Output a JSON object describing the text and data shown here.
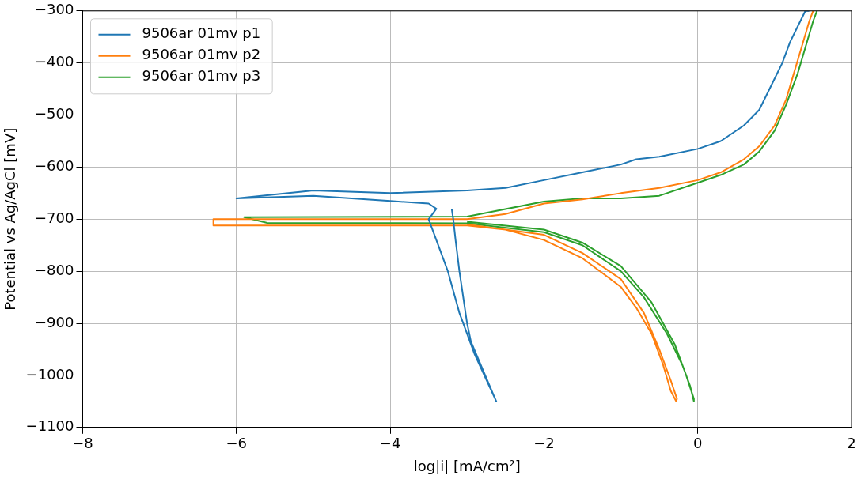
{
  "chart_data": {
    "type": "line",
    "xlabel": "log|i| [mA/cm²]",
    "ylabel": "Potential vs Ag/AgCl [mV]",
    "xlim": [
      -8,
      2
    ],
    "xticks": [
      -8,
      -6,
      -4,
      -2,
      0,
      2
    ],
    "ylim": [
      -1100,
      -300
    ],
    "yticks": [
      -1100,
      -1000,
      -900,
      -800,
      -700,
      -600,
      -500,
      -400,
      -300
    ],
    "grid": true,
    "legend": "top left",
    "marker": "none",
    "line_style": "solid",
    "series": [
      {
        "name": "9506ar 01mv p1",
        "color": "#1f77b4",
        "x": [
          1.45,
          1.4,
          1.3,
          1.2,
          1.1,
          1.0,
          0.9,
          0.8,
          0.6,
          0.3,
          0,
          -0.5,
          -0.8,
          -1,
          -1.5,
          -2,
          -2.5,
          -3,
          -4,
          -5,
          -6,
          -5,
          -4,
          -3.5,
          -3.4,
          -3.5,
          -3.4,
          -3.25,
          -3.1,
          -2.9,
          -2.62,
          -2.65,
          -2.95,
          -3.0,
          -3.05,
          -3.1,
          -3.15,
          -3.18,
          -3.2
        ],
        "values": [
          -300,
          -300,
          -330,
          -360,
          -400,
          -430,
          -460,
          -490,
          -520,
          -550,
          -565,
          -580,
          -585,
          -595,
          -610,
          -625,
          -640,
          -645,
          -650,
          -645,
          -660,
          -655,
          -665,
          -670,
          -680,
          -700,
          -740,
          -800,
          -880,
          -960,
          -1050,
          -1040,
          -935,
          -900,
          -850,
          -800,
          -740,
          -700,
          -680
        ]
      },
      {
        "name": "9506ar 01mv p2",
        "color": "#ff7f0e",
        "x": [
          1.5,
          1.45,
          1.35,
          1.25,
          1.15,
          1.0,
          0.8,
          0.6,
          0.3,
          0,
          -0.5,
          -1,
          -1.5,
          -2,
          -2.5,
          -3,
          -6.3,
          -6.3,
          -3,
          -2.5,
          -2,
          -1.5,
          -1,
          -0.8,
          -0.6,
          -0.45,
          -0.35,
          -0.28,
          -0.27,
          -0.35,
          -0.5,
          -0.7,
          -1,
          -1.5,
          -2,
          -3
        ],
        "values": [
          -300,
          -320,
          -370,
          -420,
          -470,
          -520,
          -560,
          -585,
          -610,
          -625,
          -640,
          -650,
          -662,
          -670,
          -690,
          -700,
          -700,
          -712,
          -712,
          -720,
          -740,
          -775,
          -830,
          -870,
          -920,
          -980,
          -1030,
          -1050,
          -1045,
          -1010,
          -950,
          -880,
          -815,
          -765,
          -730,
          -710
        ]
      },
      {
        "name": "9506ar 01mv p3",
        "color": "#2ca02c",
        "x": [
          1.55,
          1.5,
          1.4,
          1.3,
          1.15,
          1.0,
          0.8,
          0.6,
          0.3,
          0,
          -0.5,
          -1,
          -1.5,
          -2,
          -3,
          -5.9,
          -5.6,
          -3,
          -2,
          -1.5,
          -1,
          -0.7,
          -0.4,
          -0.2,
          -0.1,
          -0.05,
          -0.05,
          -0.15,
          -0.3,
          -0.6,
          -1,
          -1.5,
          -2,
          -3
        ],
        "values": [
          -300,
          -320,
          -370,
          -420,
          -480,
          -530,
          -570,
          -595,
          -615,
          -630,
          -655,
          -660,
          -660,
          -666,
          -695,
          -696,
          -707,
          -708,
          -725,
          -750,
          -800,
          -850,
          -920,
          -980,
          -1020,
          -1050,
          -1045,
          -1000,
          -940,
          -860,
          -790,
          -745,
          -720,
          -705
        ]
      }
    ]
  }
}
